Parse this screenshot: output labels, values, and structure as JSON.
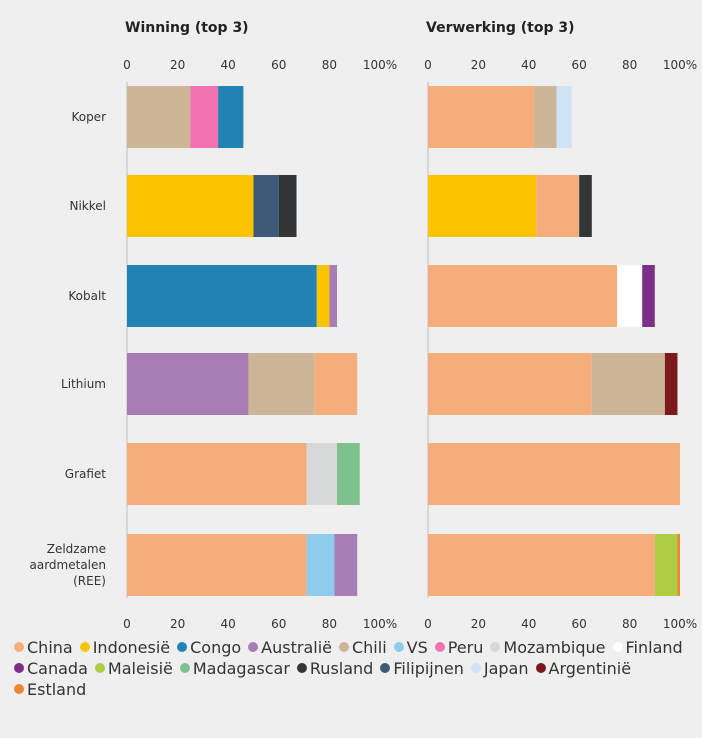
{
  "chart_data": [
    {
      "type": "bar",
      "orientation": "horizontal",
      "stacked": true,
      "title": "Winning (top 3)",
      "categories": [
        [
          "Koper"
        ],
        [
          "Nikkel"
        ],
        [
          "Kobalt"
        ],
        [
          "Lithium"
        ],
        [
          "Grafiet"
        ],
        [
          "Zeldzame",
          "aardmetalen",
          "(REE)"
        ]
      ],
      "xticks": [
        "0",
        "20",
        "40",
        "60",
        "80",
        "100%"
      ],
      "xlim": [
        0,
        100
      ],
      "bars": [
        [
          {
            "country": "Chili",
            "value": 25
          },
          {
            "country": "Peru",
            "value": 11
          },
          {
            "country": "Congo",
            "value": 10
          }
        ],
        [
          {
            "country": "Indonesië",
            "value": 50
          },
          {
            "country": "Filipijnen",
            "value": 10
          },
          {
            "country": "Rusland",
            "value": 7
          }
        ],
        [
          {
            "country": "Congo",
            "value": 75
          },
          {
            "country": "Indonesië",
            "value": 5
          },
          {
            "country": "Australië",
            "value": 3
          }
        ],
        [
          {
            "country": "Australië",
            "value": 48
          },
          {
            "country": "Chili",
            "value": 26
          },
          {
            "country": "China",
            "value": 17
          }
        ],
        [
          {
            "country": "China",
            "value": 71
          },
          {
            "country": "Mozambique",
            "value": 12
          },
          {
            "country": "Madagascar",
            "value": 9
          }
        ],
        [
          {
            "country": "China",
            "value": 71
          },
          {
            "country": "VS",
            "value": 11
          },
          {
            "country": "Australië",
            "value": 9
          }
        ]
      ]
    },
    {
      "type": "bar",
      "orientation": "horizontal",
      "stacked": true,
      "title": "Verwerking (top 3)",
      "categories": [
        [
          "Koper"
        ],
        [
          "Nikkel"
        ],
        [
          "Kobalt"
        ],
        [
          "Lithium"
        ],
        [
          "Grafiet"
        ],
        [
          "Zeldzame",
          "aardmetalen",
          "(REE)"
        ]
      ],
      "xticks": [
        "0",
        "20",
        "40",
        "60",
        "80",
        "100%"
      ],
      "xlim": [
        0,
        100
      ],
      "bars": [
        [
          {
            "country": "China",
            "value": 42
          },
          {
            "country": "Chili",
            "value": 9
          },
          {
            "country": "Japan",
            "value": 6
          }
        ],
        [
          {
            "country": "Indonesië",
            "value": 43
          },
          {
            "country": "China",
            "value": 17
          },
          {
            "country": "Rusland",
            "value": 5
          }
        ],
        [
          {
            "country": "China",
            "value": 75
          },
          {
            "country": "Finland",
            "value": 10
          },
          {
            "country": "Canada",
            "value": 5
          }
        ],
        [
          {
            "country": "China",
            "value": 65
          },
          {
            "country": "Chili",
            "value": 29
          },
          {
            "country": "Argentinië",
            "value": 5
          }
        ],
        [
          {
            "country": "China",
            "value": 100
          }
        ],
        [
          {
            "country": "China",
            "value": 90
          },
          {
            "country": "Maleisië",
            "value": 9
          },
          {
            "country": "Estland",
            "value": 1
          }
        ]
      ]
    }
  ],
  "legend": [
    {
      "name": "China",
      "color": "#f5ad7c"
    },
    {
      "name": "Indonesië",
      "color": "#fcc300"
    },
    {
      "name": "Congo",
      "color": "#2383b4"
    },
    {
      "name": "Australië",
      "color": "#a87cb5"
    },
    {
      "name": "Chili",
      "color": "#cdb597"
    },
    {
      "name": "VS",
      "color": "#8fcbeb"
    },
    {
      "name": "Peru",
      "color": "#f173b2"
    },
    {
      "name": "Mozambique",
      "color": "#d6d8d9"
    },
    {
      "name": "Finland",
      "color": "#ffffff"
    },
    {
      "name": "Canada",
      "color": "#7b2f85"
    },
    {
      "name": "Maleisië",
      "color": "#aecd45"
    },
    {
      "name": "Madagascar",
      "color": "#7dc28d"
    },
    {
      "name": "Rusland",
      "color": "#333638"
    },
    {
      "name": "Filipijnen",
      "color": "#3e5a77"
    },
    {
      "name": "Japan",
      "color": "#cfe4f7"
    },
    {
      "name": "Argentinië",
      "color": "#7c1a1a"
    },
    {
      "name": "Estland",
      "color": "#ee8632"
    }
  ]
}
